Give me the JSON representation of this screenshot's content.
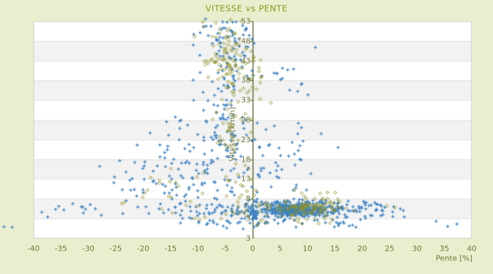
{
  "chart_data": {
    "type": "scatter",
    "title": "VITESSE vs PENTE",
    "xlabel": "Pente [%]",
    "ylabel": "Vitesse [km/h]",
    "xlim": [
      -40,
      40
    ],
    "ylim": [
      -2,
      53
    ],
    "x_ticks": [
      -40,
      -35,
      -30,
      -25,
      -20,
      -15,
      -10,
      -5,
      0,
      5,
      10,
      15,
      20,
      25,
      30,
      35,
      40
    ],
    "y_tick_labels": [
      "53",
      "48",
      "43",
      "38",
      "33",
      "28",
      "23",
      "18",
      "13",
      "8",
      "3"
    ],
    "y_axis_edge_label": "3",
    "y_tick_step": 5,
    "legend_position": "none",
    "grid_bands": true,
    "zero_line_x": 0,
    "series": [
      {
        "name": "blue_plus",
        "marker": "plus",
        "color": "#3b82c4",
        "clusters": [
          {
            "n": 60,
            "cx": -4.2,
            "sx": 2.4,
            "cy": 44,
            "sy": 5.5,
            "xr": [
              -12,
              2
            ],
            "yr": [
              30,
              53.6
            ]
          },
          {
            "n": 55,
            "cx": -4.8,
            "sx": 3.0,
            "cy": 30,
            "sy": 6.5,
            "xr": [
              -14,
              2
            ],
            "yr": [
              17,
              44
            ]
          },
          {
            "n": 65,
            "cx": -5.5,
            "sx": 4.2,
            "cy": 17,
            "sy": 5.5,
            "xr": [
              -20,
              2
            ],
            "yr": [
              8,
              29
            ]
          },
          {
            "n": 70,
            "cx": -16,
            "sx": 6.5,
            "cy": 11.5,
            "sy": 4.5,
            "xr": [
              -29,
              -4
            ],
            "yr": [
              4,
              26
            ]
          },
          {
            "n": 12,
            "cx": -11,
            "sx": 3.5,
            "cy": 25,
            "sy": 4,
            "xr": [
              -20,
              -5
            ],
            "yr": [
              18,
              33
            ]
          },
          {
            "n": 340,
            "cx": 8.2,
            "sx": 3.4,
            "cy": 5.3,
            "sy": 1.05,
            "xr": [
              0.5,
              18
            ],
            "yr": [
              3.3,
              8.2
            ]
          },
          {
            "n": 120,
            "cx": 2,
            "sx": 11,
            "cy": 5.2,
            "sy": 1.5,
            "xr": [
              -26,
              28
            ],
            "yr": [
              2.9,
              9.5
            ]
          },
          {
            "n": 48,
            "cx": 6,
            "sx": 10,
            "cy": 2,
            "sy": 0.8,
            "xr": [
              -32,
              26
            ],
            "yr": [
              0.3,
              3.2
            ]
          },
          {
            "n": 45,
            "cx": 19.5,
            "sx": 3.8,
            "cy": 5.1,
            "sy": 1.2,
            "xr": [
              13,
              28.5
            ],
            "yr": [
              3,
              8
            ]
          },
          {
            "n": 40,
            "cx": 0.3,
            "sx": 0.6,
            "cy": 4.6,
            "sy": 1.7,
            "xr": [
              -0.9,
              1.5
            ],
            "yr": [
              1.2,
              8.5
            ]
          },
          {
            "n": 38,
            "cx": 6,
            "sx": 3.5,
            "cy": 17,
            "sy": 6.5,
            "xr": [
              0.5,
              15
            ],
            "yr": [
              8.5,
              34
            ]
          },
          {
            "n": 12,
            "cx": -32,
            "sx": 3.5,
            "cy": 5,
            "sy": 1.1,
            "xr": [
              -40,
              -26
            ],
            "yr": [
              3,
              7.5
            ]
          },
          {
            "n": 22,
            "cx": -5,
            "sx": 2.6,
            "cy": 51,
            "sy": 1.4,
            "xr": [
              -11,
              1
            ],
            "yr": [
              47.5,
              53.6
            ]
          },
          {
            "n": 14,
            "cx": 6,
            "sx": 2.5,
            "cy": 40,
            "sy": 5,
            "xr": [
              2,
              12
            ],
            "yr": [
              30,
              49
            ]
          }
        ],
        "points": [
          [
            -45.4,
            0.9
          ],
          [
            -43.9,
            0.8
          ],
          [
            35.6,
            1.0
          ],
          [
            37.3,
            1.6
          ],
          [
            33.5,
            2.3
          ],
          [
            -38.5,
            4.6
          ],
          [
            15.6,
            21
          ],
          [
            12.5,
            24.5
          ]
        ]
      },
      {
        "name": "olive_diamond",
        "marker": "diamond",
        "color": "#8f9023",
        "clusters": [
          {
            "n": 115,
            "cx": -4.3,
            "sx": 2.1,
            "cy": 43,
            "sy": 5.8,
            "xr": [
              -11,
              1.5
            ],
            "yr": [
              28,
              53.6
            ]
          },
          {
            "n": 28,
            "cx": -4,
            "sx": 2.3,
            "cy": 24.5,
            "sy": 3.8,
            "xr": [
              -10,
              1
            ],
            "yr": [
              17,
              32
            ]
          },
          {
            "n": 18,
            "cx": -2.2,
            "sx": 1.6,
            "cy": 11.5,
            "sy": 3.6,
            "xr": [
              -7,
              1
            ],
            "yr": [
              5,
              18
            ]
          },
          {
            "n": 95,
            "cx": 9,
            "sx": 4.2,
            "cy": 6.1,
            "sy": 1.15,
            "xr": [
              0,
              21
            ],
            "yr": [
              3.6,
              9
            ]
          },
          {
            "n": 32,
            "cx": 2,
            "sx": 8.5,
            "cy": 4.3,
            "sy": 1.2,
            "xr": [
              -14,
              24
            ],
            "yr": [
              2.2,
              7
            ]
          },
          {
            "n": 22,
            "cx": -12,
            "sx": 6,
            "cy": 10,
            "sy": 4,
            "xr": [
              -26,
              -2
            ],
            "yr": [
              3.5,
              22
            ]
          },
          {
            "n": 7,
            "cx": 12,
            "sx": 3,
            "cy": 9.2,
            "sy": 1.3,
            "xr": [
              6,
              17
            ],
            "yr": [
              7.5,
              12
            ]
          },
          {
            "n": 8,
            "cx": 8,
            "sx": 6,
            "cy": 2.3,
            "sy": 0.7,
            "xr": [
              -4,
              22
            ],
            "yr": [
              0.8,
              3.3
            ]
          },
          {
            "n": 6,
            "cx": 1.5,
            "sx": 1.2,
            "cy": 38,
            "sy": 4,
            "xr": [
              0.2,
              4
            ],
            "yr": [
              32,
              45
            ]
          }
        ],
        "points": [
          [
            24.5,
            6.2
          ],
          [
            26,
            5.8
          ],
          [
            -17,
            12
          ]
        ]
      }
    ]
  },
  "colors": {
    "background": "#e9efce",
    "plot_background": "#ffffff",
    "band_alt": "#f2f2f2",
    "band_border": "#e3e3e3",
    "plot_border": "#cfcfcf",
    "zero_axis_line": "#4a5416",
    "title": "#8a9a20",
    "tick_labels": "#6f7536",
    "axis_title": "#767b3f"
  },
  "rng_seed": 1234
}
